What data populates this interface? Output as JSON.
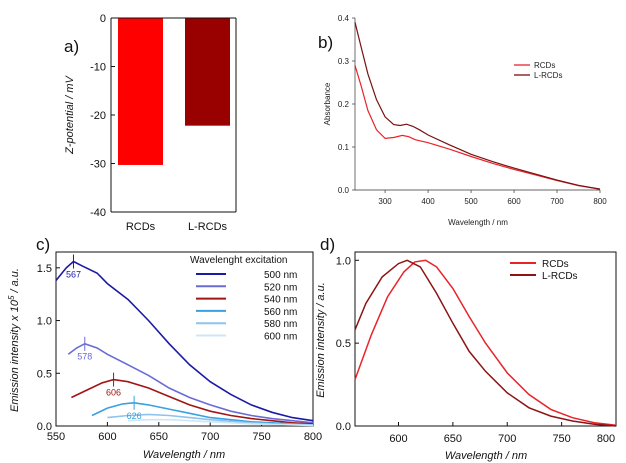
{
  "chart_data": [
    {
      "panel": "a)",
      "type": "bar",
      "categories": [
        "RCDs",
        "L-RCDs"
      ],
      "values": [
        -30.3,
        -22.2
      ],
      "colors": [
        "#ff0000",
        "#990000"
      ],
      "ylabel": "Z-potential / mV",
      "ylim": [
        -40,
        0
      ],
      "yticks": [
        0,
        -10,
        -20,
        -30,
        -40
      ],
      "grid": false
    },
    {
      "panel": "b)",
      "type": "line",
      "xlabel": "Wavelength / nm",
      "ylabel": "Absorbance",
      "xlim": [
        230,
        800
      ],
      "ylim": [
        0,
        0.4
      ],
      "xticks": [
        300,
        400,
        500,
        600,
        700,
        800
      ],
      "yticks": [
        0.0,
        0.1,
        0.2,
        0.3,
        0.4
      ],
      "legend_position": "top-right",
      "series": [
        {
          "name": "RCDs",
          "color": "#e8242a",
          "x": [
            230,
            245,
            260,
            280,
            300,
            320,
            340,
            355,
            370,
            400,
            450,
            500,
            550,
            600,
            650,
            700,
            750,
            800
          ],
          "y": [
            0.29,
            0.24,
            0.185,
            0.14,
            0.12,
            0.122,
            0.127,
            0.124,
            0.117,
            0.11,
            0.095,
            0.078,
            0.062,
            0.048,
            0.035,
            0.022,
            0.01,
            0.002
          ]
        },
        {
          "name": "L-RCDs",
          "color": "#7a1010",
          "x": [
            230,
            245,
            260,
            280,
            300,
            320,
            335,
            350,
            365,
            380,
            400,
            450,
            500,
            550,
            600,
            650,
            700,
            750,
            800
          ],
          "y": [
            0.39,
            0.33,
            0.27,
            0.21,
            0.17,
            0.152,
            0.15,
            0.153,
            0.148,
            0.14,
            0.128,
            0.105,
            0.083,
            0.066,
            0.051,
            0.037,
            0.023,
            0.011,
            0.002
          ]
        }
      ]
    },
    {
      "panel": "c)",
      "type": "line",
      "xlabel": "Wavelength / nm",
      "ylabel": "Emission intensity x 10",
      "ylabel_exp": "5",
      "ylabel_unit": " / a.u.",
      "xlim": [
        550,
        800
      ],
      "ylim": [
        0,
        1.65
      ],
      "xticks": [
        550,
        600,
        650,
        700,
        750,
        800
      ],
      "yticks": [
        0.0,
        0.5,
        1.0,
        1.5
      ],
      "yticklabels": [
        "0.0",
        "0.5",
        "1.0",
        "1.5"
      ],
      "legend_title": "Wavelenght excitation",
      "legend_position": "top-right",
      "series": [
        {
          "name": "500 nm",
          "color": "#1a1aa6",
          "x": [
            550,
            560,
            567,
            575,
            590,
            600,
            620,
            640,
            660,
            680,
            700,
            720,
            740,
            760,
            780,
            800
          ],
          "y": [
            1.38,
            1.5,
            1.56,
            1.52,
            1.45,
            1.35,
            1.2,
            1.0,
            0.78,
            0.58,
            0.42,
            0.3,
            0.2,
            0.13,
            0.08,
            0.05
          ]
        },
        {
          "name": "520 nm",
          "color": "#6b6bd6",
          "x": [
            562,
            570,
            578,
            590,
            600,
            620,
            640,
            660,
            680,
            700,
            720,
            740,
            760,
            780,
            800
          ],
          "y": [
            0.68,
            0.74,
            0.78,
            0.74,
            0.68,
            0.58,
            0.48,
            0.36,
            0.27,
            0.2,
            0.14,
            0.1,
            0.07,
            0.05,
            0.03
          ]
        },
        {
          "name": "540 nm",
          "color": "#a01515",
          "x": [
            565,
            580,
            595,
            606,
            620,
            640,
            660,
            680,
            700,
            720,
            740,
            760,
            780,
            800
          ],
          "y": [
            0.27,
            0.34,
            0.41,
            0.44,
            0.42,
            0.36,
            0.28,
            0.2,
            0.14,
            0.1,
            0.07,
            0.05,
            0.03,
            0.02
          ]
        },
        {
          "name": "560 nm",
          "color": "#3aa0e0",
          "x": [
            585,
            600,
            615,
            626,
            640,
            660,
            680,
            700,
            720,
            740,
            760,
            780,
            800
          ],
          "y": [
            0.1,
            0.17,
            0.21,
            0.22,
            0.2,
            0.16,
            0.12,
            0.08,
            0.06,
            0.04,
            0.03,
            0.02,
            0.01
          ]
        },
        {
          "name": "580 nm",
          "color": "#8cc4ee",
          "x": [
            600,
            620,
            640,
            660,
            680,
            700,
            720,
            740,
            760,
            780,
            800
          ],
          "y": [
            0.08,
            0.1,
            0.11,
            0.1,
            0.08,
            0.06,
            0.045,
            0.03,
            0.02,
            0.015,
            0.01
          ]
        },
        {
          "name": "600 nm",
          "color": "#cfe6f7",
          "x": [
            620,
            640,
            660,
            680,
            700,
            720,
            740,
            760,
            780,
            800
          ],
          "y": [
            0.05,
            0.06,
            0.06,
            0.05,
            0.04,
            0.03,
            0.02,
            0.015,
            0.01,
            0.005
          ]
        }
      ],
      "annotations": [
        {
          "text": "567",
          "x": 567,
          "y": 1.56,
          "color": "#1a1aa6"
        },
        {
          "text": "578",
          "x": 578,
          "y": 0.78,
          "color": "#6b6bd6"
        },
        {
          "text": "606",
          "x": 606,
          "y": 0.44,
          "color": "#a01515"
        },
        {
          "text": "626",
          "x": 626,
          "y": 0.22,
          "color": "#3aa0e0"
        }
      ]
    },
    {
      "panel": "d)",
      "type": "line",
      "xlabel": "Wavelength / nm",
      "ylabel": "Emission intensity / a.u.",
      "xlim": [
        560,
        800
      ],
      "ylim": [
        0,
        1.05
      ],
      "xticks": [
        600,
        650,
        700,
        750,
        800
      ],
      "yticks": [
        0.0,
        0.5,
        1.0
      ],
      "legend_position": "top-right",
      "series": [
        {
          "name": "RCDs",
          "color": "#e8242a",
          "x": [
            560,
            575,
            590,
            605,
            615,
            625,
            635,
            650,
            665,
            680,
            700,
            720,
            740,
            760,
            780,
            800
          ],
          "y": [
            0.28,
            0.55,
            0.78,
            0.93,
            0.99,
            1.0,
            0.96,
            0.83,
            0.66,
            0.5,
            0.32,
            0.19,
            0.1,
            0.05,
            0.02,
            0.005
          ]
        },
        {
          "name": "L-RCDs",
          "color": "#8b1414",
          "x": [
            560,
            570,
            585,
            600,
            608,
            620,
            635,
            650,
            665,
            680,
            700,
            720,
            740,
            760,
            780,
            800
          ],
          "y": [
            0.58,
            0.74,
            0.9,
            0.98,
            1.0,
            0.96,
            0.8,
            0.62,
            0.45,
            0.33,
            0.2,
            0.11,
            0.06,
            0.03,
            0.01,
            0.0
          ]
        }
      ]
    }
  ]
}
